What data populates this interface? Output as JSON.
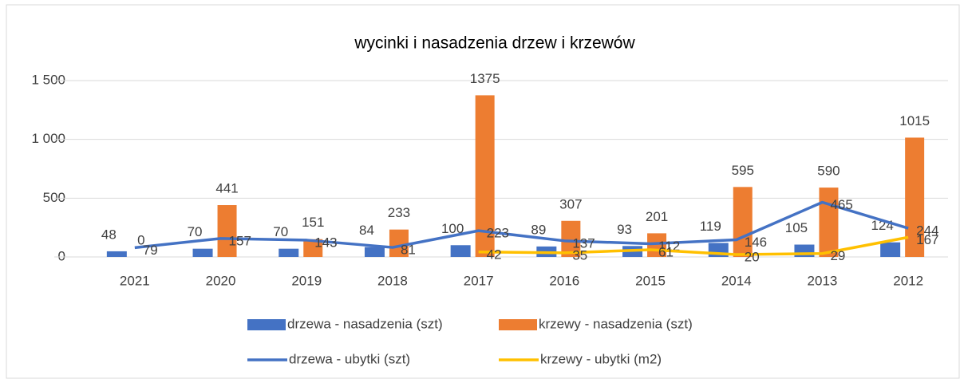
{
  "chart_data": {
    "type": "bar_line",
    "title": "wycinki i nasadzenia drzew i krzewów",
    "categories": [
      "2021",
      "2020",
      "2019",
      "2018",
      "2017",
      "2016",
      "2015",
      "2014",
      "2013",
      "2012"
    ],
    "series": [
      {
        "name": "drzewa - nasadzenia  (szt)",
        "type": "bar",
        "color": "#4472c4",
        "values": [
          48,
          70,
          70,
          84,
          100,
          89,
          93,
          119,
          105,
          124
        ]
      },
      {
        "name": "krzewy - nasadzenia  (szt)",
        "type": "bar",
        "color": "#ed7d31",
        "values": [
          0,
          441,
          151,
          233,
          1375,
          307,
          201,
          595,
          590,
          1015
        ]
      },
      {
        "name": "drzewa - ubytki  (szt)",
        "type": "line",
        "color": "#4472c4",
        "values": [
          79,
          157,
          143,
          81,
          223,
          137,
          112,
          146,
          465,
          244
        ]
      },
      {
        "name": "krzewy - ubytki  (m2)",
        "type": "line",
        "color": "#ffc000",
        "values": [
          null,
          null,
          null,
          null,
          42,
          35,
          61,
          20,
          29,
          167
        ]
      }
    ],
    "ylim": [
      0,
      1500
    ],
    "yticks": [
      0,
      500,
      {
        "value": 1000,
        "label": "1 000"
      },
      {
        "value": 1500,
        "label": "1 500"
      }
    ],
    "grid": true,
    "legend": "bottom"
  }
}
